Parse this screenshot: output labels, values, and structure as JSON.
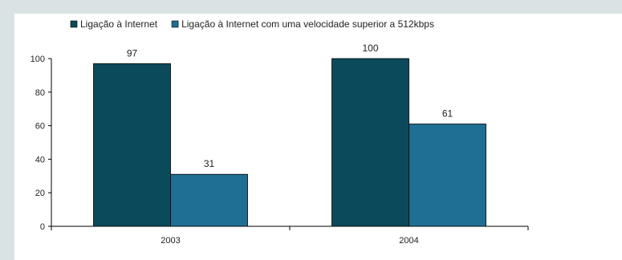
{
  "chart_data": {
    "type": "bar",
    "title": "",
    "xlabel": "",
    "ylabel": "",
    "categories": [
      "2003",
      "2004"
    ],
    "series": [
      {
        "name": "Ligação à Internet",
        "values": [
          97,
          100
        ],
        "color": "#0b4a5a"
      },
      {
        "name": "Ligação à Internet com uma velocidade superior a 512kbps",
        "values": [
          31,
          61
        ],
        "color": "#1e6f93"
      }
    ],
    "ylim": [
      0,
      100
    ],
    "yticks": [
      0,
      20,
      40,
      60,
      80,
      100
    ],
    "ytick_labels": [
      "0",
      "20",
      "40",
      "60",
      "80",
      "100"
    ],
    "value_labels": [
      [
        "97",
        "100"
      ],
      [
        "31",
        "61"
      ]
    ],
    "legend_position": "top",
    "grid": false
  }
}
